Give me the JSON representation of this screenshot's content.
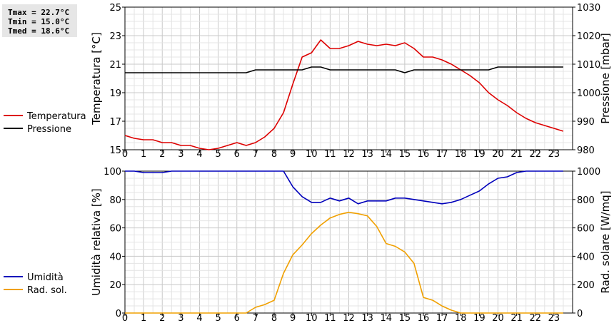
{
  "stats": {
    "tmax": "Tmax = 22.7°C",
    "tmin": "Tmin = 15.0°C",
    "tmed": "Tmed = 18.6°C"
  },
  "chart_data": [
    {
      "type": "line",
      "xlabel": "",
      "ylabel": "Temperatura [°C]",
      "ylabel_right": "Pressione [mbar]",
      "xlim": [
        0,
        24
      ],
      "ylim": [
        15,
        25
      ],
      "ylim_right": [
        980,
        1030
      ],
      "x_ticks": [
        "0",
        "1",
        "2",
        "3",
        "4",
        "5",
        "6",
        "7",
        "8",
        "9",
        "10",
        "11",
        "12",
        "13",
        "14",
        "15",
        "16",
        "17",
        "18",
        "19",
        "20",
        "21",
        "22",
        "23"
      ],
      "y_ticks": [
        "15",
        "17",
        "19",
        "21",
        "23",
        "25"
      ],
      "y_ticks_right": [
        "980",
        "990",
        "1000",
        "1010",
        "1020",
        "1030"
      ],
      "grid": true,
      "legend_position": "left",
      "series": [
        {
          "name": "Temperatura",
          "axis": "left",
          "color": "#dd0000",
          "x": [
            0,
            0.5,
            1,
            1.5,
            2,
            2.5,
            3,
            3.5,
            4,
            4.5,
            5,
            5.5,
            6,
            6.5,
            7,
            7.5,
            8,
            8.5,
            9,
            9.5,
            10,
            10.5,
            11,
            11.5,
            12,
            12.5,
            13,
            13.5,
            14,
            14.5,
            15,
            15.5,
            16,
            16.5,
            17,
            17.5,
            18,
            18.5,
            19,
            19.5,
            20,
            20.5,
            21,
            21.5,
            22,
            22.5,
            23,
            23.5
          ],
          "values": [
            16.0,
            15.8,
            15.7,
            15.7,
            15.5,
            15.5,
            15.3,
            15.3,
            15.1,
            15.0,
            15.1,
            15.3,
            15.5,
            15.3,
            15.5,
            15.9,
            16.5,
            17.6,
            19.6,
            21.5,
            21.8,
            22.7,
            22.1,
            22.1,
            22.3,
            22.6,
            22.4,
            22.3,
            22.4,
            22.3,
            22.5,
            22.1,
            21.5,
            21.5,
            21.3,
            21.0,
            20.6,
            20.2,
            19.7,
            19.0,
            18.5,
            18.1,
            17.6,
            17.2,
            16.9,
            16.7,
            16.5,
            16.3
          ]
        },
        {
          "name": "Pressione",
          "axis": "right",
          "color": "#000000",
          "x": [
            0,
            0.5,
            1,
            1.5,
            2,
            2.5,
            3,
            3.5,
            4,
            4.5,
            5,
            5.5,
            6,
            6.5,
            7,
            7.5,
            8,
            8.5,
            9,
            9.5,
            10,
            10.5,
            11,
            11.5,
            12,
            12.5,
            13,
            13.5,
            14,
            14.5,
            15,
            15.5,
            16,
            16.5,
            17,
            17.5,
            18,
            18.5,
            19,
            19.5,
            20,
            20.5,
            21,
            21.5,
            22,
            22.5,
            23,
            23.5
          ],
          "values": [
            1007,
            1007,
            1007,
            1007,
            1007,
            1007,
            1007,
            1007,
            1007,
            1007,
            1007,
            1007,
            1007,
            1007,
            1008,
            1008,
            1008,
            1008,
            1008,
            1008,
            1009,
            1009,
            1008,
            1008,
            1008,
            1008,
            1008,
            1008,
            1008,
            1008,
            1007,
            1008,
            1008,
            1008,
            1008,
            1008,
            1008,
            1008,
            1008,
            1008,
            1009,
            1009,
            1009,
            1009,
            1009,
            1009,
            1009,
            1009
          ]
        }
      ]
    },
    {
      "type": "line",
      "xlabel": "",
      "ylabel": "Umidità relativa [%]",
      "ylabel_right": "Rad. solare [W/mq]",
      "xlim": [
        0,
        24
      ],
      "ylim": [
        0,
        100
      ],
      "ylim_right": [
        0,
        1000
      ],
      "x_ticks": [
        "0",
        "1",
        "2",
        "3",
        "4",
        "5",
        "6",
        "7",
        "8",
        "9",
        "10",
        "11",
        "12",
        "13",
        "14",
        "15",
        "16",
        "17",
        "18",
        "19",
        "20",
        "21",
        "22",
        "23"
      ],
      "y_ticks": [
        "0",
        "20",
        "40",
        "60",
        "80",
        "100"
      ],
      "y_ticks_right": [
        "0",
        "200",
        "400",
        "600",
        "800",
        "1000"
      ],
      "grid": true,
      "legend_position": "left",
      "series": [
        {
          "name": "Umidità",
          "axis": "left",
          "color": "#0000bb",
          "x": [
            0,
            0.5,
            1,
            1.5,
            2,
            2.5,
            3,
            3.5,
            4,
            4.5,
            5,
            5.5,
            6,
            6.5,
            7,
            7.5,
            8,
            8.5,
            9,
            9.5,
            10,
            10.5,
            11,
            11.5,
            12,
            12.5,
            13,
            13.5,
            14,
            14.5,
            15,
            15.5,
            16,
            16.5,
            17,
            17.5,
            18,
            18.5,
            19,
            19.5,
            20,
            20.5,
            21,
            21.5,
            22,
            22.5,
            23,
            23.5
          ],
          "values": [
            100,
            100,
            99,
            99,
            99,
            100,
            100,
            100,
            100,
            100,
            100,
            100,
            100,
            100,
            100,
            100,
            100,
            100,
            89,
            82,
            78,
            78,
            81,
            79,
            81,
            77,
            79,
            79,
            79,
            81,
            81,
            80,
            79,
            78,
            77,
            78,
            80,
            83,
            86,
            91,
            95,
            96,
            99,
            100,
            100,
            100,
            100,
            100
          ]
        },
        {
          "name": "Rad. sol.",
          "axis": "right",
          "color": "#f0a000",
          "x": [
            0,
            0.5,
            1,
            1.5,
            2,
            2.5,
            3,
            3.5,
            4,
            4.5,
            5,
            5.5,
            6,
            6.5,
            7,
            7.5,
            8,
            8.5,
            9,
            9.5,
            10,
            10.5,
            11,
            11.5,
            12,
            12.5,
            13,
            13.5,
            14,
            14.5,
            15,
            15.5,
            16,
            16.5,
            17,
            17.5,
            18,
            18.5,
            19,
            19.5,
            20,
            20.5,
            21,
            21.5,
            22,
            22.5,
            23,
            23.5
          ],
          "values": [
            0,
            0,
            0,
            0,
            0,
            0,
            0,
            0,
            0,
            0,
            0,
            0,
            0,
            0,
            40,
            60,
            90,
            280,
            410,
            480,
            560,
            620,
            670,
            695,
            710,
            700,
            685,
            610,
            490,
            470,
            430,
            350,
            110,
            90,
            50,
            20,
            0,
            0,
            0,
            0,
            0,
            0,
            0,
            0,
            0,
            0,
            0,
            0
          ]
        }
      ]
    }
  ]
}
